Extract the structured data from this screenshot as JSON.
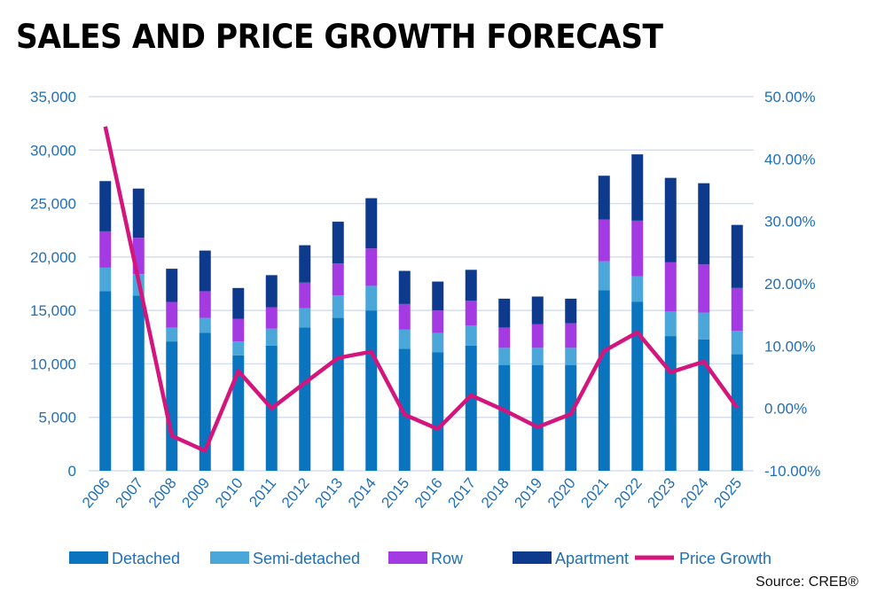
{
  "title": "SALES AND PRICE GROWTH FORECAST",
  "source": "Source: CREB®",
  "chart_data": {
    "type": "bar",
    "stacked": true,
    "title": "SALES AND PRICE GROWTH FORECAST",
    "categories": [
      "2006",
      "2007",
      "2008",
      "2009",
      "2010",
      "2011",
      "2012",
      "2013",
      "2014",
      "2015",
      "2016",
      "2017",
      "2018",
      "2019",
      "2020",
      "2021",
      "2022",
      "2023",
      "2024",
      "2025"
    ],
    "y_left": {
      "range": [
        0,
        35000
      ],
      "ticks": [
        "0",
        "5,000",
        "10,000",
        "15,000",
        "20,000",
        "25,000",
        "30,000",
        "35,000"
      ]
    },
    "y_right": {
      "range": [
        -0.1,
        0.5
      ],
      "ticks": [
        "-10.00%",
        "0.00%",
        "10.00%",
        "20.00%",
        "30.00%",
        "40.00%",
        "50.00%"
      ]
    },
    "grid": true,
    "legend_position": "bottom",
    "series": [
      {
        "name": "Detached",
        "color": "#0b74bf",
        "axis": "left",
        "values": [
          16800,
          16400,
          12100,
          12900,
          10800,
          11700,
          13400,
          14300,
          15000,
          11400,
          11100,
          11700,
          9900,
          9900,
          9900,
          16900,
          15800,
          12600,
          12300,
          10900
        ]
      },
      {
        "name": "Semi-detached",
        "color": "#4ba6d9",
        "axis": "left",
        "values": [
          2200,
          2000,
          1300,
          1400,
          1300,
          1600,
          1800,
          2100,
          2300,
          1800,
          1800,
          1900,
          1600,
          1600,
          1600,
          2700,
          2400,
          2300,
          2500,
          2200
        ]
      },
      {
        "name": "Row",
        "color": "#a43be2",
        "axis": "left",
        "values": [
          3400,
          3400,
          2400,
          2500,
          2100,
          2000,
          2400,
          3000,
          3500,
          2400,
          2100,
          2300,
          1900,
          2200,
          2300,
          3900,
          5200,
          4600,
          4500,
          4000
        ]
      },
      {
        "name": "Apartment",
        "color": "#0d3a8c",
        "axis": "left",
        "values": [
          4700,
          4600,
          3100,
          3800,
          2900,
          3000,
          3500,
          3900,
          4700,
          3100,
          2700,
          2900,
          2700,
          2600,
          2300,
          4100,
          6200,
          7900,
          7600,
          5900
        ]
      },
      {
        "name": "Price Growth",
        "type": "line",
        "color": "#d4157c",
        "axis": "right",
        "values": [
          0.452,
          0.205,
          -0.044,
          -0.068,
          0.06,
          0.0,
          0.041,
          0.081,
          0.091,
          -0.01,
          -0.033,
          0.021,
          -0.003,
          -0.03,
          -0.009,
          0.092,
          0.122,
          0.058,
          0.075,
          0.001
        ]
      }
    ]
  }
}
